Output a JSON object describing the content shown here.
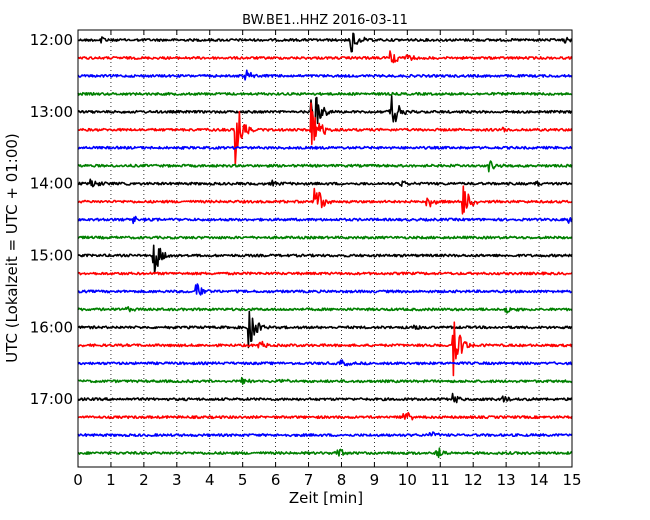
{
  "chart_data": {
    "type": "line",
    "title": "BW.BE1..HHZ 2016-03-11",
    "xlabel": "Zeit  [min]",
    "ylabel": "UTC (Lokalzeit = UTC + 01:00)",
    "xlim": [
      0,
      15
    ],
    "x_ticks": [
      "0",
      "1",
      "2",
      "3",
      "4",
      "5",
      "6",
      "7",
      "8",
      "9",
      "10",
      "11",
      "12",
      "13",
      "14",
      "15"
    ],
    "y_ticks": [
      "12:00",
      "13:00",
      "14:00",
      "15:00",
      "16:00",
      "17:00"
    ],
    "grid": "vertical-dotted",
    "trace_colors": [
      "#000000",
      "#ff0000",
      "#0000ff",
      "#008000"
    ],
    "traces": [
      {
        "start": "12:00",
        "events": [
          {
            "x": 0.7,
            "amp": 0.2
          },
          {
            "x": 8.3,
            "amp": 0.9
          },
          {
            "x": 14.8,
            "amp": 0.2
          }
        ]
      },
      {
        "start": "12:15",
        "events": [
          {
            "x": 9.5,
            "amp": 0.5
          },
          {
            "x": 10.0,
            "amp": 0.3
          }
        ]
      },
      {
        "start": "12:30",
        "events": [
          {
            "x": 5.1,
            "amp": 0.4
          }
        ]
      },
      {
        "start": "12:45",
        "events": []
      },
      {
        "start": "13:00",
        "events": [
          {
            "x": 7.1,
            "amp": 2.0
          },
          {
            "x": 9.5,
            "amp": 1.3
          }
        ]
      },
      {
        "start": "13:15",
        "events": [
          {
            "x": 4.8,
            "amp": 2.2
          },
          {
            "x": 7.1,
            "amp": 2.0
          },
          {
            "x": 12.9,
            "amp": 0.2
          }
        ]
      },
      {
        "start": "13:30",
        "events": []
      },
      {
        "start": "13:45",
        "events": [
          {
            "x": 12.5,
            "amp": 0.3
          }
        ]
      },
      {
        "start": "14:00",
        "events": [
          {
            "x": 0.4,
            "amp": 0.3
          },
          {
            "x": 5.9,
            "amp": 0.2
          },
          {
            "x": 9.8,
            "amp": 0.2
          },
          {
            "x": 13.9,
            "amp": 0.2
          }
        ]
      },
      {
        "start": "14:15",
        "events": [
          {
            "x": 7.2,
            "amp": 1.2
          },
          {
            "x": 10.6,
            "amp": 0.4
          },
          {
            "x": 11.7,
            "amp": 1.0
          }
        ]
      },
      {
        "start": "14:30",
        "events": [
          {
            "x": 1.7,
            "amp": 0.2
          },
          {
            "x": 14.9,
            "amp": 0.3
          }
        ]
      },
      {
        "start": "14:45",
        "events": []
      },
      {
        "start": "15:00",
        "events": [
          {
            "x": 2.3,
            "amp": 1.3
          }
        ]
      },
      {
        "start": "15:15",
        "events": []
      },
      {
        "start": "15:30",
        "events": [
          {
            "x": 3.6,
            "amp": 0.6
          }
        ]
      },
      {
        "start": "15:45",
        "events": [
          {
            "x": 1.4,
            "amp": 0.2
          },
          {
            "x": 13.0,
            "amp": 0.2
          }
        ]
      },
      {
        "start": "16:00",
        "events": [
          {
            "x": 2.6,
            "amp": 0.2
          },
          {
            "x": 5.2,
            "amp": 1.2
          },
          {
            "x": 10.2,
            "amp": 0.2
          }
        ]
      },
      {
        "start": "16:15",
        "events": [
          {
            "x": 5.5,
            "amp": 0.3
          },
          {
            "x": 11.4,
            "amp": 2.0
          }
        ]
      },
      {
        "start": "16:30",
        "events": [
          {
            "x": 8.0,
            "amp": 0.2
          }
        ]
      },
      {
        "start": "16:45",
        "events": [
          {
            "x": 5.0,
            "amp": 0.2
          },
          {
            "x": 6.1,
            "amp": 0.2
          }
        ]
      },
      {
        "start": "17:00",
        "events": [
          {
            "x": 11.4,
            "amp": 0.3
          },
          {
            "x": 12.9,
            "amp": 0.2
          }
        ]
      },
      {
        "start": "17:15",
        "events": [
          {
            "x": 9.9,
            "amp": 0.4
          }
        ]
      },
      {
        "start": "17:30",
        "events": [
          {
            "x": 10.7,
            "amp": 0.2
          }
        ]
      },
      {
        "start": "17:45",
        "events": [
          {
            "x": 7.8,
            "amp": 0.5
          },
          {
            "x": 10.9,
            "amp": 0.4
          }
        ]
      }
    ]
  }
}
